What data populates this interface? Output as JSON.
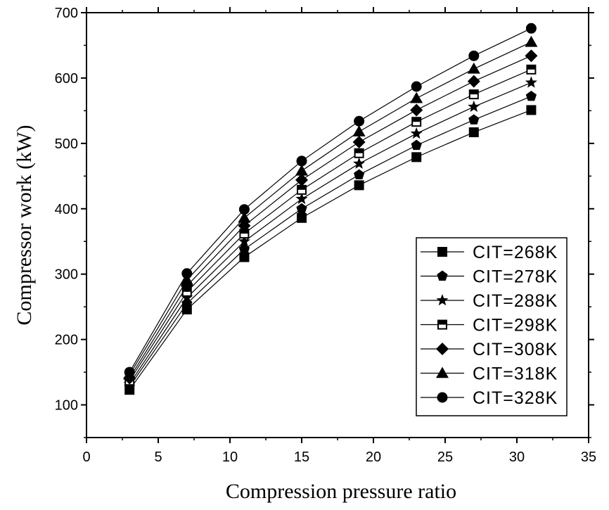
{
  "chart_data": {
    "type": "line",
    "xlabel": "Compression pressure ratio",
    "ylabel": "Compressor work (kW)",
    "xlim": [
      0,
      35
    ],
    "ylim": [
      50,
      700
    ],
    "x_ticks": [
      0,
      5,
      10,
      15,
      20,
      25,
      30,
      35
    ],
    "y_ticks": [
      100,
      200,
      300,
      400,
      500,
      600,
      700
    ],
    "grid": false,
    "legend_position": "bottom-right",
    "x": [
      3,
      7,
      11,
      15,
      19,
      23,
      27,
      31
    ],
    "series": [
      {
        "name": "CIT=268K",
        "marker": "square",
        "values": [
          123,
          246,
          326,
          386,
          436,
          479,
          517,
          551
        ]
      },
      {
        "name": "CIT=278K",
        "marker": "pentagon",
        "values": [
          128,
          255,
          338,
          400,
          452,
          497,
          536,
          572
        ]
      },
      {
        "name": "CIT=288K",
        "marker": "star",
        "values": [
          132,
          264,
          350,
          415,
          469,
          515,
          556,
          593
        ]
      },
      {
        "name": "CIT=298K",
        "marker": "half-square",
        "values": [
          137,
          273,
          362,
          429,
          485,
          533,
          575,
          613
        ]
      },
      {
        "name": "CIT=308K",
        "marker": "diamond",
        "values": [
          141,
          282,
          374,
          444,
          502,
          551,
          595,
          634
        ]
      },
      {
        "name": "CIT=318K",
        "marker": "triangle",
        "values": [
          146,
          291,
          386,
          458,
          518,
          569,
          614,
          655
        ]
      },
      {
        "name": "CIT=328K",
        "marker": "circle",
        "values": [
          150,
          301,
          399,
          473,
          534,
          587,
          634,
          676
        ]
      }
    ]
  }
}
